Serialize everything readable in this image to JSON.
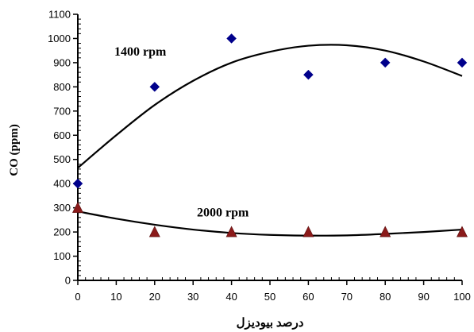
{
  "chart_data": {
    "type": "scatter",
    "xlabel": "درصد بیودیزل",
    "ylabel": "CO (ppm)",
    "xlim": [
      0,
      100
    ],
    "ylim": [
      0,
      1100
    ],
    "x_ticks": [
      0,
      10,
      20,
      30,
      40,
      50,
      60,
      70,
      80,
      90,
      100
    ],
    "y_ticks": [
      0,
      100,
      200,
      300,
      400,
      500,
      600,
      700,
      800,
      900,
      1000,
      1100
    ],
    "grid": false,
    "series": [
      {
        "name": "1400 rpm",
        "marker": "diamond",
        "color": "#00008B",
        "x": [
          0,
          20,
          40,
          60,
          80,
          100
        ],
        "y": [
          400,
          800,
          1000,
          850,
          900,
          900
        ],
        "trendline": {
          "type": "polynomial",
          "x": [
            0,
            10,
            20,
            30,
            40,
            50,
            60,
            70,
            80,
            90,
            100
          ],
          "y": [
            465,
            600,
            725,
            825,
            900,
            945,
            970,
            972,
            950,
            905,
            845
          ]
        }
      },
      {
        "name": "2000 rpm",
        "marker": "triangle",
        "color": "#8B1A1A",
        "x": [
          0,
          20,
          40,
          60,
          80,
          100
        ],
        "y": [
          300,
          200,
          200,
          200,
          200,
          200
        ],
        "trendline": {
          "type": "polynomial",
          "x": [
            0,
            10,
            20,
            30,
            40,
            50,
            60,
            70,
            80,
            90,
            100
          ],
          "y": [
            285,
            255,
            230,
            210,
            196,
            188,
            185,
            186,
            192,
            200,
            210
          ]
        }
      }
    ],
    "annotations": [
      {
        "text": "1400 rpm",
        "x": 9.5,
        "y": 930
      },
      {
        "text": "2000 rpm",
        "x": 31,
        "y": 265
      }
    ]
  }
}
